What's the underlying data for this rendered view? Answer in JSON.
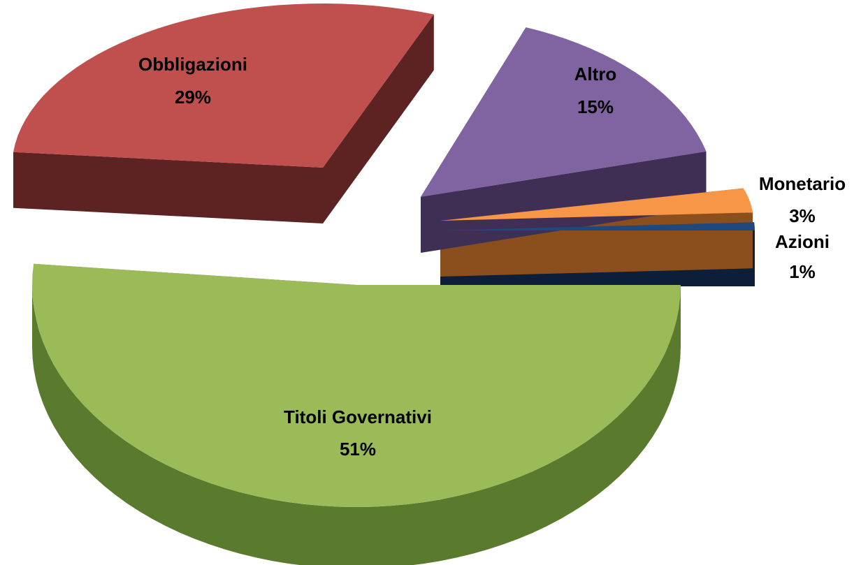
{
  "chart_data": {
    "type": "pie",
    "title": "",
    "legend": "none",
    "exploded": true,
    "slices": [
      {
        "name": "Titoli Governativi",
        "value": 51,
        "label": "51%",
        "color": "#9bbb59",
        "side_color": "#5a7a2e"
      },
      {
        "name": "Obbligazioni",
        "value": 29,
        "label": "29%",
        "color": "#c0504d",
        "side_color": "#5c2322"
      },
      {
        "name": "Altro",
        "value": 15,
        "label": "15%",
        "color": "#8064a2",
        "side_color": "#3f2f54"
      },
      {
        "name": "Monetario",
        "value": 3,
        "label": "3%",
        "color": "#f79646",
        "side_color": "#8a4f1d"
      },
      {
        "name": "Azioni",
        "value": 1,
        "label": "1%",
        "color": "#1f497d",
        "side_color": "#0c1e38"
      }
    ]
  }
}
